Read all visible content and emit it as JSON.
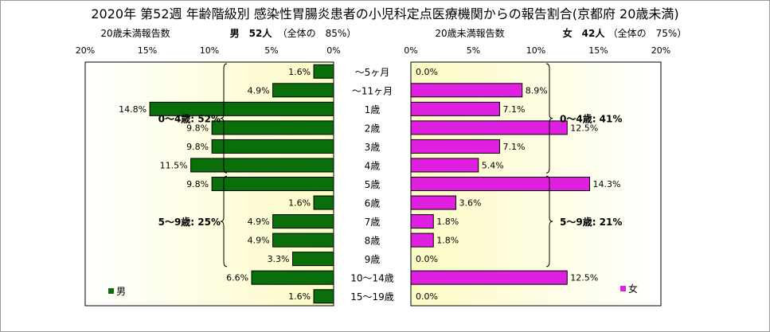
{
  "headers": {
    "left_label": "20歳未満報告数",
    "left_count": "男　52人",
    "left_share": "（全体の　85%）",
    "right_label": "20歳未満報告数",
    "right_count": "女　42人",
    "right_share": "（全体の　75%）"
  },
  "chart_data": {
    "type": "bar",
    "title": "2020年 第52週 年齢階級別 感染性胃腸炎患者の小児科定点医療機関からの報告割合(京都府 20歳未満)",
    "categories": [
      "～5ヶ月",
      "～11ヶ月",
      "1歳",
      "2歳",
      "3歳",
      "4歳",
      "5歳",
      "6歳",
      "7歳",
      "8歳",
      "9歳",
      "10～14歳",
      "15～19歳"
    ],
    "series": [
      {
        "name": "男",
        "color": "#0a6e0a",
        "values": [
          1.6,
          4.9,
          14.8,
          9.8,
          9.8,
          11.5,
          9.8,
          1.6,
          4.9,
          4.9,
          3.3,
          6.6,
          1.6
        ],
        "labels": [
          "1.6%",
          "4.9%",
          "14.8%",
          "9.8%",
          "9.8%",
          "11.5%",
          "9.8%",
          "1.6%",
          "4.9%",
          "4.9%",
          "3.3%",
          "6.6%",
          "1.6%"
        ]
      },
      {
        "name": "女",
        "color": "#e020e0",
        "values": [
          0.0,
          8.9,
          7.1,
          12.5,
          7.1,
          5.4,
          14.3,
          3.6,
          1.8,
          1.8,
          0.0,
          12.5,
          0.0
        ],
        "labels": [
          "0.0%",
          "8.9%",
          "7.1%",
          "12.5%",
          "7.1%",
          "5.4%",
          "14.3%",
          "3.6%",
          "1.8%",
          "1.8%",
          "0.0%",
          "12.5%",
          "0.0%"
        ]
      }
    ],
    "xlim": [
      0,
      20
    ],
    "ticks": [
      "20%",
      "15%",
      "10%",
      "5%",
      "0%",
      "0%",
      "5%",
      "10%",
      "15%",
      "20%"
    ],
    "annotations": [
      {
        "side": "left",
        "text": "0～4歳: 52%",
        "from": 0,
        "to": 5
      },
      {
        "side": "left",
        "text": "5～9歳: 25%",
        "from": 6,
        "to": 10
      },
      {
        "side": "right",
        "text": "0～4歳: 41%",
        "from": 0,
        "to": 5
      },
      {
        "side": "right",
        "text": "5～9歳: 21%",
        "from": 6,
        "to": 10
      }
    ],
    "legend": "bottom-inside"
  }
}
